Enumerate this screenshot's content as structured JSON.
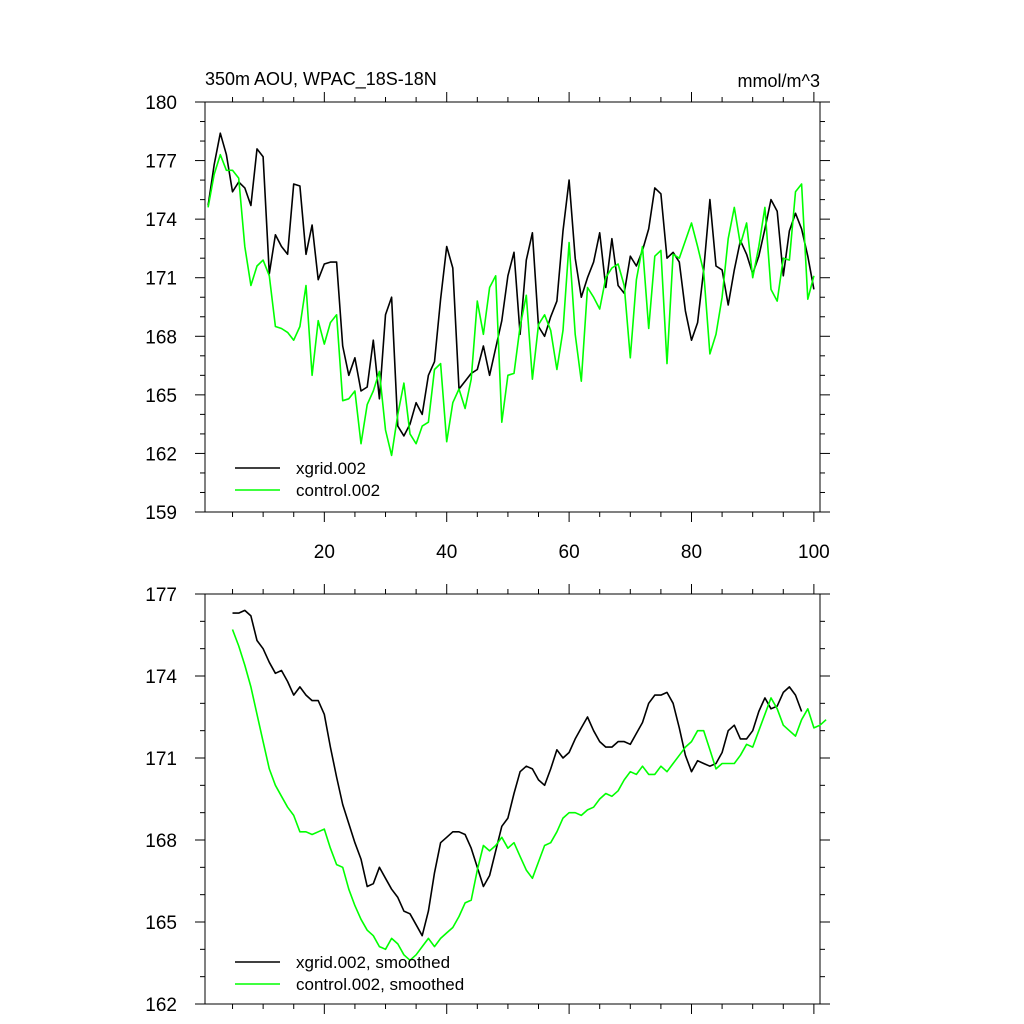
{
  "chart_data": [
    {
      "type": "line",
      "title": "350m AOU, WPAC_18S-18N",
      "units": "mmol/m^3",
      "xlabel": "",
      "ylabel": "",
      "xlim": [
        0.5,
        101
      ],
      "ylim": [
        159,
        180
      ],
      "x_ticks": [
        20,
        40,
        60,
        80,
        100
      ],
      "y_ticks": [
        159,
        162,
        165,
        168,
        171,
        174,
        177,
        180
      ],
      "legend_position": "bottom-left",
      "grid": false,
      "x_start": 1,
      "series": [
        {
          "name": "xgrid.002",
          "color": "#000000",
          "values": [
            174.7,
            176.8,
            178.4,
            177.3,
            175.4,
            175.9,
            175.6,
            174.7,
            177.6,
            177.2,
            171.2,
            173.2,
            172.6,
            172.2,
            175.8,
            175.7,
            172.2,
            173.7,
            170.9,
            171.7,
            171.8,
            171.8,
            167.5,
            166.0,
            166.9,
            165.2,
            165.4,
            167.8,
            164.8,
            169.1,
            170.0,
            163.4,
            162.9,
            163.5,
            164.6,
            164.0,
            166.0,
            166.7,
            169.9,
            172.6,
            171.5,
            165.3,
            165.7,
            166.1,
            166.3,
            167.5,
            166.0,
            167.4,
            168.8,
            171.1,
            172.3,
            168.1,
            171.9,
            173.3,
            168.5,
            168.0,
            169.0,
            169.8,
            173.4,
            176.0,
            172.0,
            170.0,
            171.0,
            171.8,
            173.3,
            170.5,
            173.0,
            170.6,
            170.2,
            172.1,
            171.6,
            172.4,
            173.5,
            175.6,
            175.3,
            172.0,
            172.3,
            171.8,
            169.3,
            167.8,
            168.7,
            171.4,
            175.0,
            171.6,
            171.4,
            169.6,
            171.4,
            172.9,
            172.2,
            171.2,
            172.1,
            173.5,
            175.0,
            174.4,
            171.1,
            173.4,
            174.3,
            173.5,
            172.1,
            170.4
          ]
        },
        {
          "name": "control.002",
          "color": "#00ff00",
          "values": [
            174.6,
            176.3,
            177.3,
            176.5,
            176.5,
            176.1,
            172.6,
            170.6,
            171.6,
            171.9,
            171.1,
            168.5,
            168.4,
            168.2,
            167.8,
            168.5,
            170.6,
            166.0,
            168.8,
            167.6,
            168.7,
            169.1,
            164.7,
            164.8,
            165.2,
            162.5,
            164.5,
            165.2,
            166.2,
            163.2,
            161.9,
            164.0,
            165.6,
            163.0,
            162.5,
            163.4,
            163.6,
            166.3,
            166.6,
            162.6,
            164.6,
            165.3,
            164.3,
            165.8,
            169.8,
            168.1,
            170.5,
            171.1,
            163.6,
            166.0,
            166.1,
            168.5,
            170.1,
            165.8,
            168.6,
            169.1,
            168.3,
            166.3,
            168.3,
            172.8,
            168.1,
            165.7,
            170.5,
            170.0,
            169.4,
            171.0,
            171.5,
            171.7,
            170.6,
            166.9,
            170.9,
            172.6,
            168.4,
            172.1,
            172.4,
            166.6,
            172.2,
            172.0,
            172.9,
            173.8,
            172.6,
            171.3,
            167.1,
            168.1,
            170.0,
            173.0,
            174.6,
            172.7,
            173.8,
            171.0,
            172.6,
            174.6,
            170.4,
            169.8,
            172.0,
            171.9,
            175.4,
            175.8,
            169.9,
            171.1
          ]
        }
      ]
    },
    {
      "type": "line",
      "title": "",
      "units": "",
      "xlabel": "",
      "ylabel": "",
      "xlim": [
        0.5,
        101
      ],
      "ylim": [
        162,
        177
      ],
      "x_ticks": [
        20,
        40,
        60,
        80,
        100
      ],
      "y_ticks": [
        162,
        165,
        168,
        171,
        174,
        177
      ],
      "legend_position": "bottom-left",
      "grid": false,
      "x_start": 5,
      "series": [
        {
          "name": "xgrid.002, smoothed",
          "color": "#000000",
          "values": [
            176.3,
            176.3,
            176.4,
            176.2,
            175.3,
            175.0,
            174.5,
            174.1,
            174.2,
            173.8,
            173.3,
            173.6,
            173.3,
            173.1,
            173.1,
            172.6,
            171.4,
            170.3,
            169.3,
            168.6,
            167.9,
            167.3,
            166.3,
            166.4,
            167.0,
            166.6,
            166.2,
            165.9,
            165.4,
            165.3,
            164.9,
            164.5,
            165.4,
            166.8,
            167.9,
            168.1,
            168.3,
            168.3,
            168.2,
            167.7,
            167.0,
            166.3,
            166.7,
            167.6,
            168.5,
            168.8,
            169.7,
            170.5,
            170.7,
            170.6,
            170.2,
            170.0,
            170.6,
            171.3,
            171.0,
            171.2,
            171.7,
            172.1,
            172.5,
            172.0,
            171.6,
            171.4,
            171.4,
            171.6,
            171.6,
            171.5,
            171.9,
            172.3,
            173.0,
            173.3,
            173.3,
            173.4,
            173.0,
            172.1,
            171.1,
            170.5,
            170.9,
            170.8,
            170.7,
            170.8,
            171.2,
            172.0,
            172.2,
            171.7,
            171.7,
            172.0,
            172.7,
            173.2,
            172.8,
            172.9,
            173.4,
            173.6,
            173.3,
            172.7
          ]
        },
        {
          "name": "control.002, smoothed",
          "color": "#00ff00",
          "values": [
            175.7,
            175.1,
            174.4,
            173.6,
            172.6,
            171.6,
            170.6,
            170.0,
            169.6,
            169.2,
            168.9,
            168.3,
            168.3,
            168.2,
            168.3,
            168.4,
            167.7,
            167.1,
            167.0,
            166.2,
            165.6,
            165.1,
            164.7,
            164.5,
            164.1,
            164.0,
            164.4,
            164.2,
            163.8,
            163.6,
            163.8,
            164.1,
            164.4,
            164.1,
            164.4,
            164.6,
            164.8,
            165.2,
            165.7,
            165.8,
            166.9,
            167.8,
            167.6,
            167.8,
            168.1,
            167.7,
            167.9,
            167.4,
            166.9,
            166.6,
            167.2,
            167.8,
            167.9,
            168.3,
            168.8,
            169.0,
            169.0,
            168.9,
            169.1,
            169.2,
            169.5,
            169.7,
            169.6,
            169.8,
            170.2,
            170.5,
            170.4,
            170.7,
            170.4,
            170.4,
            170.7,
            170.5,
            170.8,
            171.1,
            171.4,
            171.6,
            172.0,
            172.0,
            171.3,
            170.6,
            170.8,
            170.8,
            170.8,
            171.1,
            171.5,
            171.4,
            172.0,
            172.6,
            173.2,
            172.8,
            172.2,
            172.0,
            171.8,
            172.4,
            172.8,
            172.1,
            172.2,
            172.4
          ]
        }
      ]
    }
  ]
}
